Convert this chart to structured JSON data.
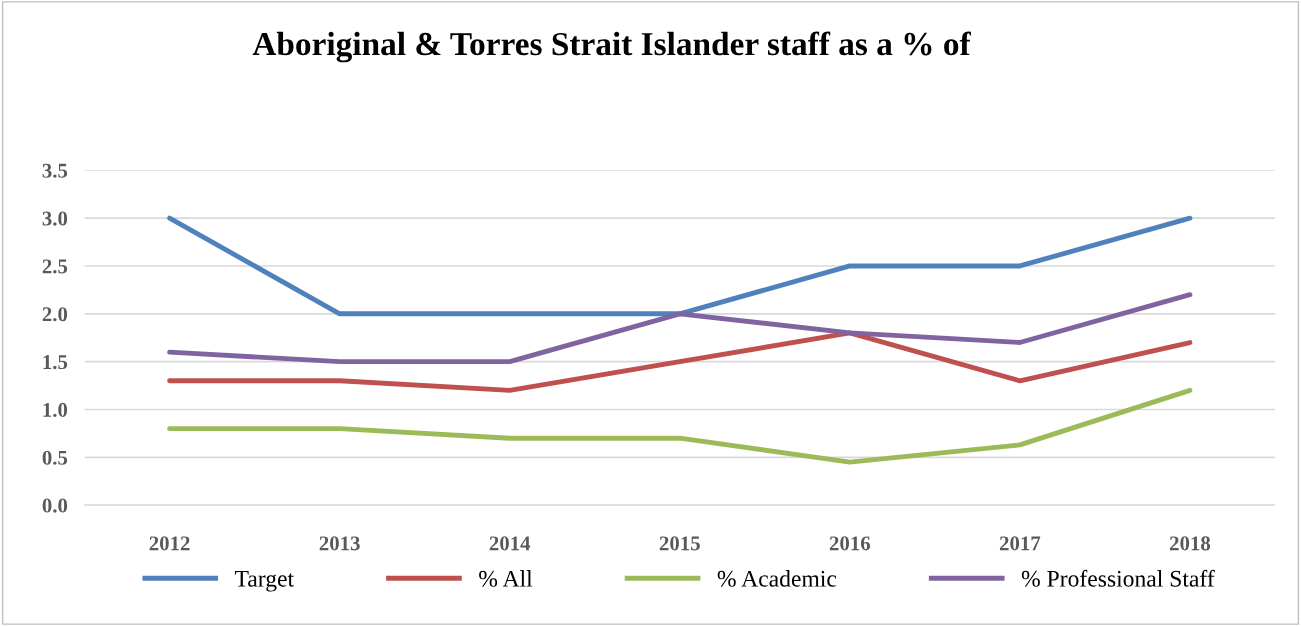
{
  "chart_data": {
    "type": "line",
    "title": "Aboriginal & Torres Strait Islander staff as a % of",
    "categories": [
      "2012",
      "2013",
      "2014",
      "2015",
      "2016",
      "2017",
      "2018"
    ],
    "series": [
      {
        "name": "Target",
        "color": "#4f81bd",
        "values": [
          3.0,
          2.0,
          2.0,
          2.0,
          2.5,
          2.5,
          3.0
        ]
      },
      {
        "name": "% All",
        "color": "#c0504d",
        "values": [
          1.3,
          1.3,
          1.2,
          1.5,
          1.8,
          1.3,
          1.7
        ]
      },
      {
        "name": "% Academic",
        "color": "#9bbb59",
        "values": [
          0.8,
          0.8,
          0.7,
          0.7,
          0.45,
          0.63,
          1.2
        ]
      },
      {
        "name": "% Professional Staff",
        "color": "#8064a2",
        "values": [
          1.6,
          1.5,
          1.5,
          2.0,
          1.8,
          1.7,
          2.2
        ]
      }
    ],
    "ylim": [
      0,
      3.5
    ],
    "yticks": [
      {
        "value": 0,
        "label": "0.0"
      },
      {
        "value": 0.5,
        "label": "0.5"
      },
      {
        "value": 1,
        "label": "1.0"
      },
      {
        "value": 1.5,
        "label": "1.5"
      },
      {
        "value": 2,
        "label": "2.0"
      },
      {
        "value": 2.5,
        "label": "2.5"
      },
      {
        "value": 3,
        "label": "3.0"
      },
      {
        "value": 3.5,
        "label": "3.5"
      }
    ],
    "grid": "y",
    "legend": "bottom",
    "marker": "none",
    "line_style": "solid"
  }
}
